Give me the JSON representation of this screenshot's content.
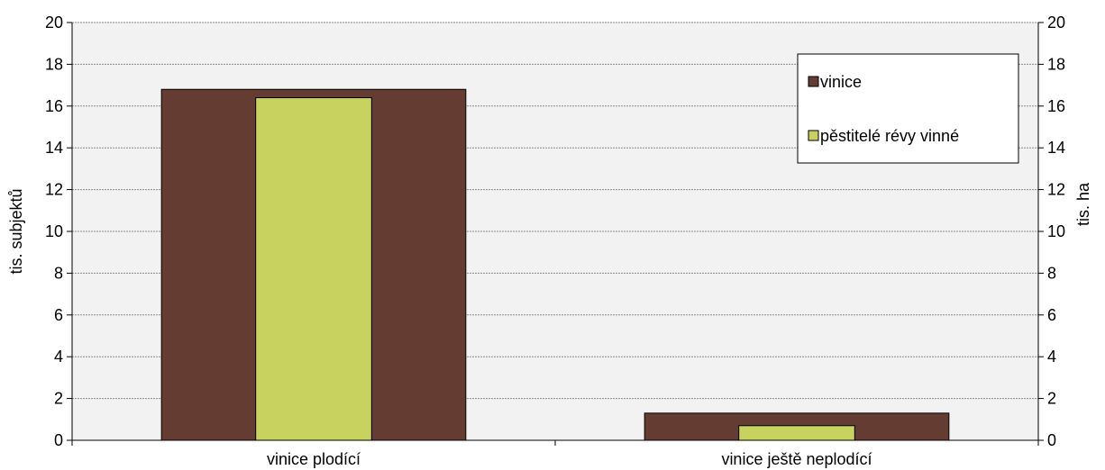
{
  "chart_data": {
    "type": "bar",
    "categories": [
      "vinice plodící",
      "vinice ještě neplodící"
    ],
    "series": [
      {
        "name": "vinice",
        "axis": "right",
        "color": "#643C32",
        "values": [
          16.8,
          1.3
        ]
      },
      {
        "name": "pěstitelé révy vinné",
        "axis": "left",
        "color": "#C8D25F",
        "values": [
          16.4,
          0.7
        ]
      }
    ],
    "ylabel": "tis. subjektů",
    "y2label": "tis. ha",
    "ylim": [
      0,
      20
    ],
    "y2lim": [
      0,
      20
    ],
    "yticks": [
      "0",
      "2",
      "4",
      "6",
      "8",
      "10",
      "12",
      "14",
      "16",
      "18",
      "20"
    ],
    "grid": true,
    "legend_position": "top-right",
    "plot_background": "#F2F2F2"
  }
}
